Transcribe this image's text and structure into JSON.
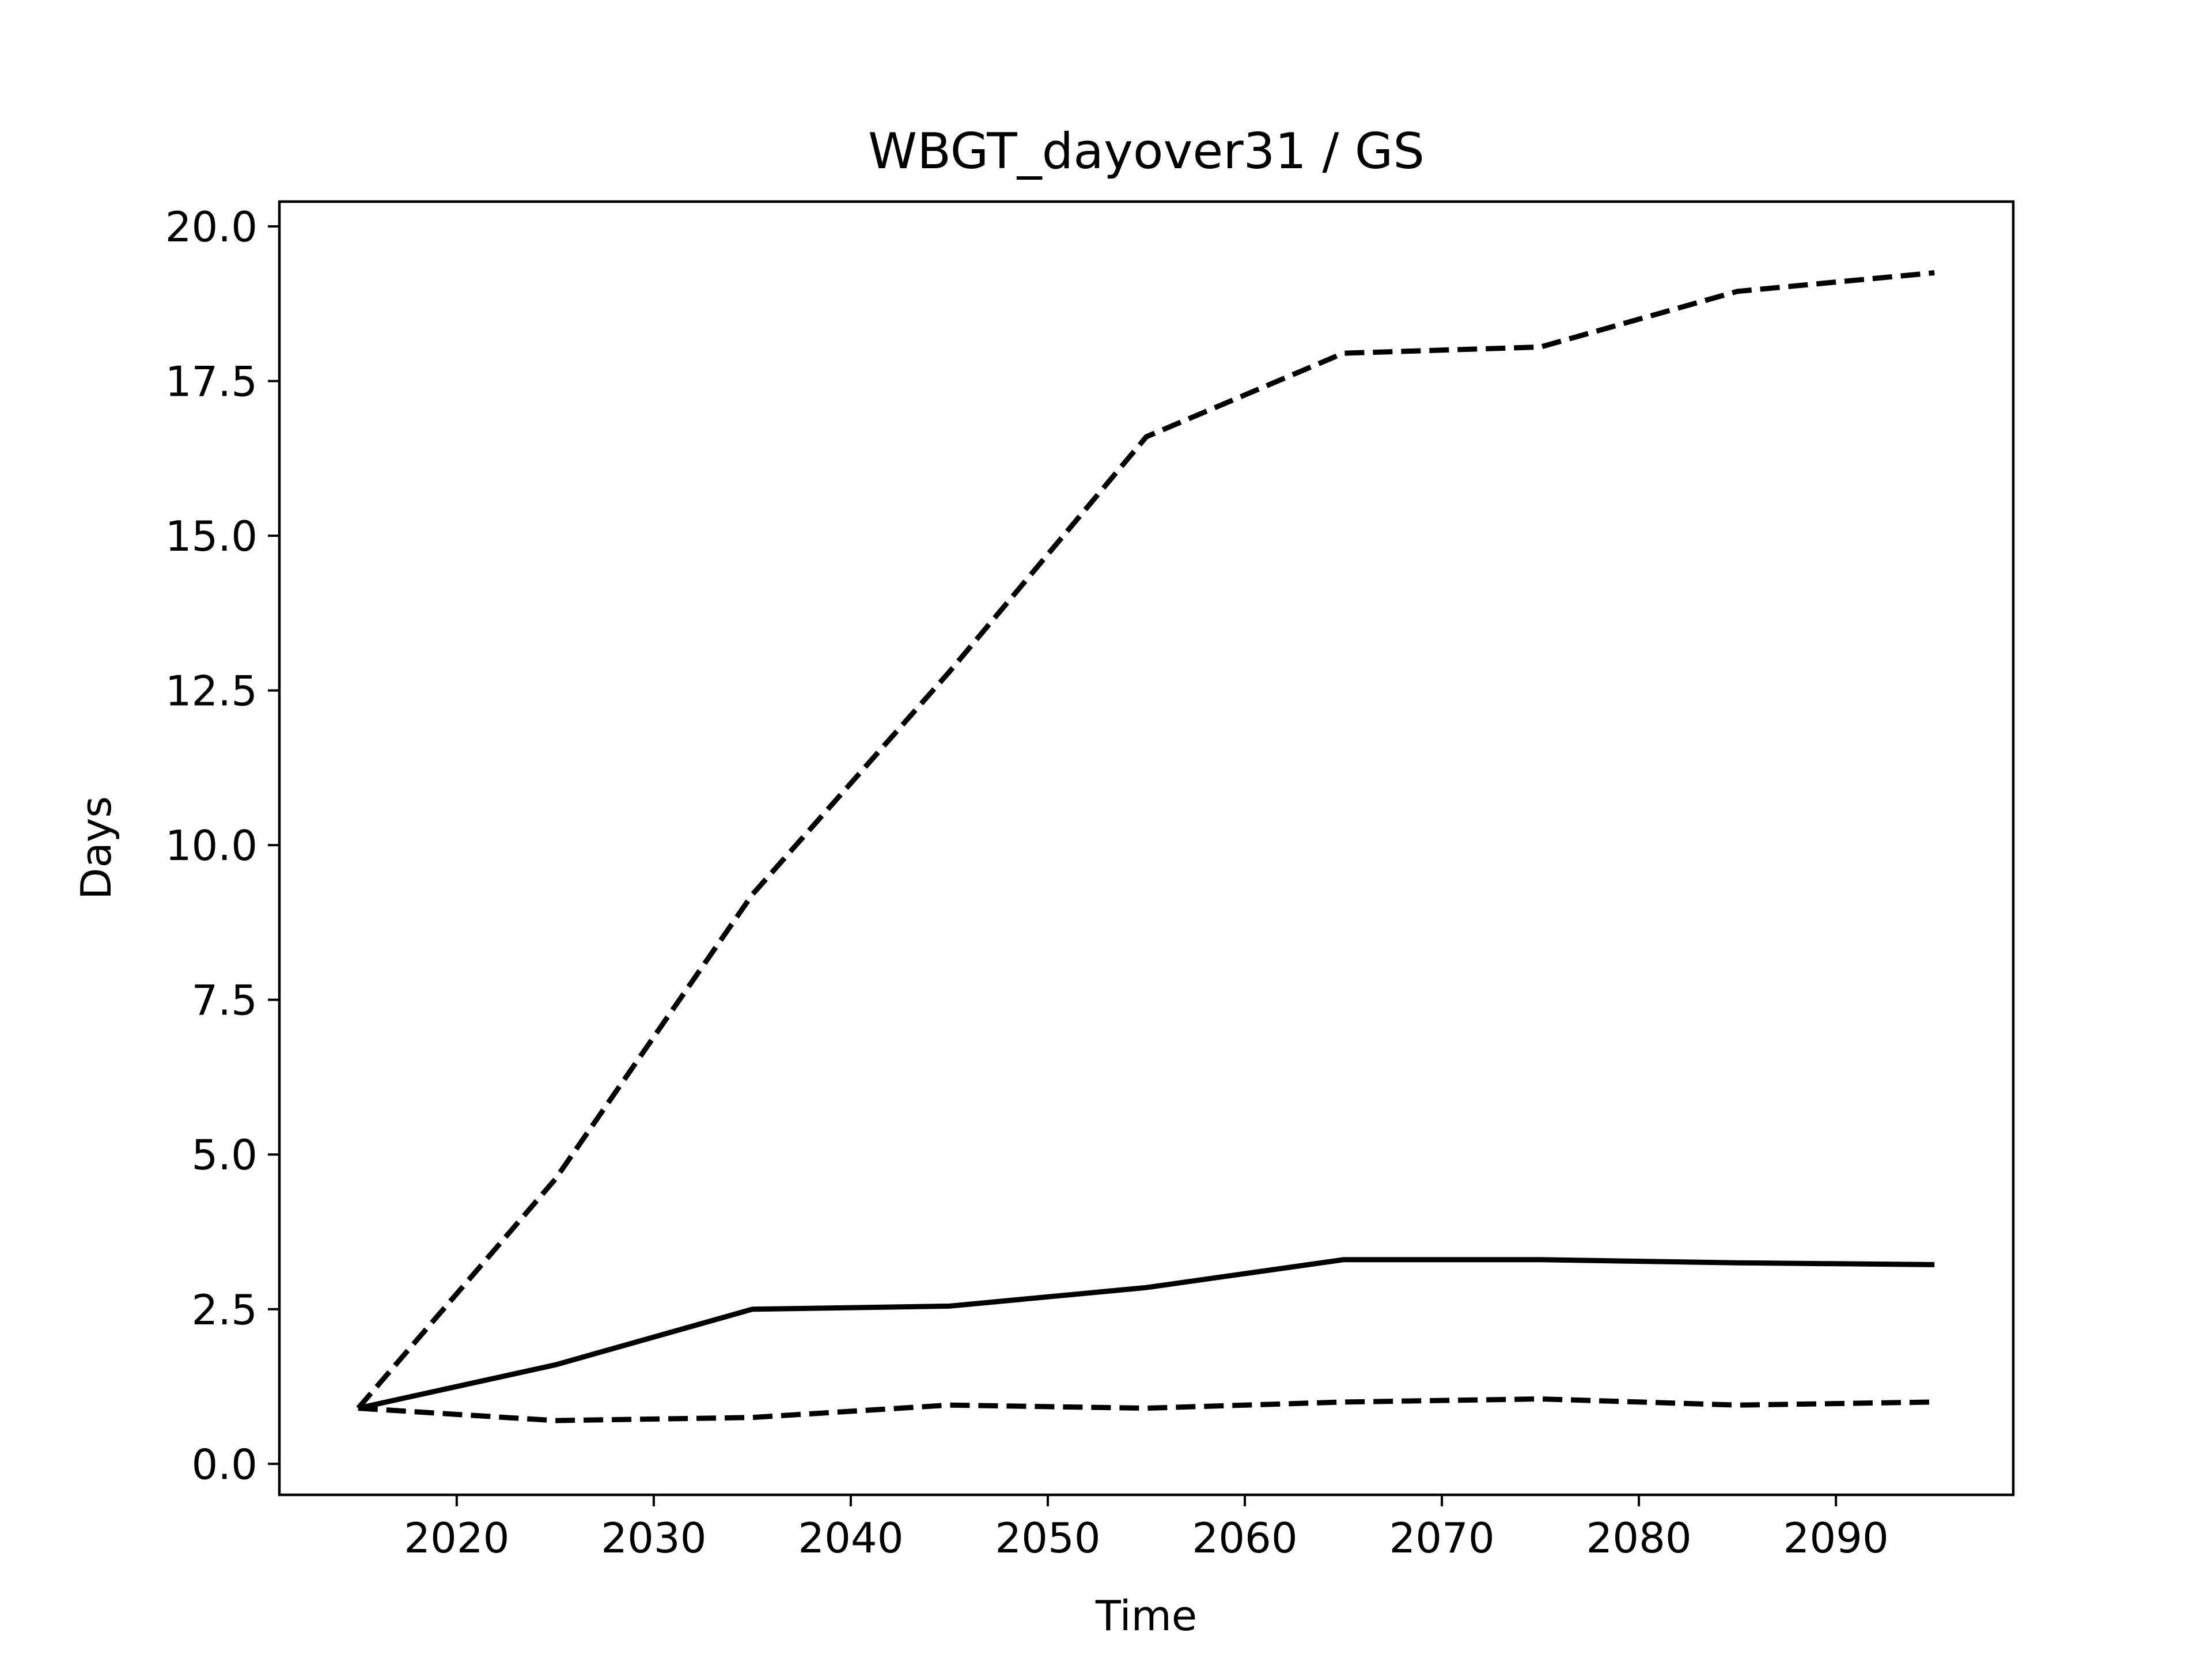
{
  "chart_data": {
    "type": "line",
    "title": "WBGT_dayover31 / GS",
    "xlabel": "Time",
    "ylabel": "Days",
    "xlim": [
      2011,
      2099
    ],
    "ylim": [
      -0.5,
      20.4
    ],
    "xticks": [
      2020,
      2030,
      2040,
      2050,
      2060,
      2070,
      2080,
      2090
    ],
    "yticks": [
      0.0,
      2.5,
      5.0,
      7.5,
      10.0,
      12.5,
      15.0,
      17.5,
      20.0
    ],
    "xtick_labels": [
      "2020",
      "2030",
      "2040",
      "2050",
      "2060",
      "2070",
      "2080",
      "2090"
    ],
    "ytick_labels": [
      "0.0",
      "2.5",
      "5.0",
      "7.5",
      "10.0",
      "12.5",
      "15.0",
      "17.5",
      "20.0"
    ],
    "grid": false,
    "legend": false,
    "x": [
      2015,
      2025,
      2035,
      2045,
      2055,
      2065,
      2075,
      2085,
      2095
    ],
    "series": [
      {
        "style": "dashed",
        "color": "#000000",
        "values": [
          0.9,
          4.6,
          9.2,
          12.8,
          16.6,
          17.95,
          18.05,
          18.95,
          19.25
        ]
      },
      {
        "style": "solid",
        "color": "#000000",
        "values": [
          0.9,
          1.6,
          2.5,
          2.55,
          2.85,
          3.3,
          3.3,
          3.25,
          3.22
        ]
      },
      {
        "style": "dashed",
        "color": "#000000",
        "values": [
          0.9,
          0.7,
          0.75,
          0.95,
          0.9,
          1.0,
          1.05,
          0.95,
          1.0
        ]
      }
    ]
  }
}
